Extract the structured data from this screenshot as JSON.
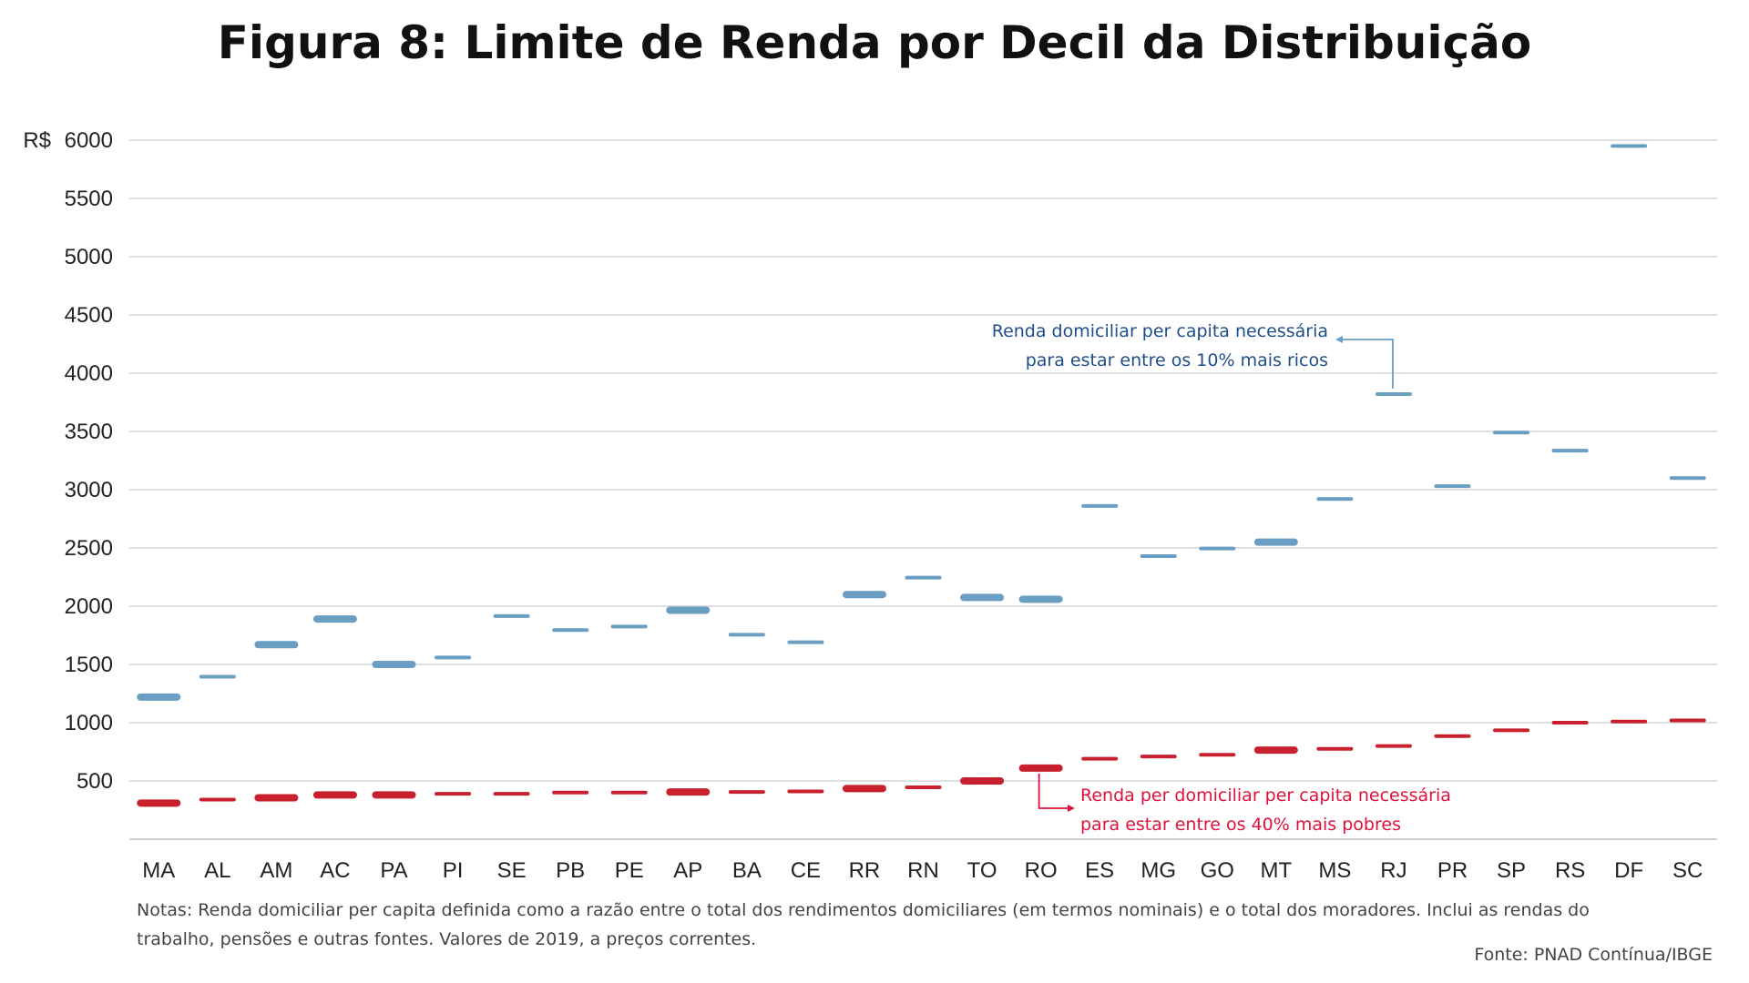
{
  "title": "Figura 8: Limite de Renda por Decil da Distribuição",
  "chart_data": {
    "type": "scatter",
    "y_prefix": "R$",
    "ylim": [
      0,
      6000
    ],
    "y_ticks": [
      500,
      1000,
      1500,
      2000,
      2500,
      3000,
      3500,
      4000,
      4500,
      5000,
      5500,
      6000
    ],
    "grid": true,
    "categories": [
      "MA",
      "AL",
      "AM",
      "AC",
      "PA",
      "PI",
      "SE",
      "PB",
      "PE",
      "AP",
      "BA",
      "CE",
      "RR",
      "RN",
      "TO",
      "RO",
      "ES",
      "MG",
      "GO",
      "MT",
      "MS",
      "RJ",
      "PR",
      "SP",
      "RS",
      "DF",
      "SC"
    ],
    "series": [
      {
        "color": "#6a9ec2",
        "values": [
          1220,
          1395,
          1670,
          1890,
          1500,
          1560,
          1915,
          1795,
          1825,
          1965,
          1755,
          1690,
          2100,
          2245,
          2075,
          2060,
          2860,
          2430,
          2495,
          2550,
          2920,
          3820,
          3030,
          3490,
          3335,
          5950,
          3100
        ],
        "bold": [
          true,
          false,
          true,
          true,
          true,
          false,
          false,
          false,
          false,
          true,
          false,
          false,
          true,
          false,
          true,
          true,
          false,
          false,
          false,
          true,
          false,
          false,
          false,
          false,
          false,
          false,
          false
        ]
      },
      {
        "color": "#c8202d",
        "values": [
          310,
          340,
          355,
          380,
          380,
          390,
          390,
          400,
          400,
          405,
          405,
          410,
          435,
          445,
          500,
          610,
          690,
          710,
          725,
          765,
          775,
          800,
          885,
          935,
          1000,
          1010,
          1020
        ],
        "bold": [
          true,
          false,
          true,
          true,
          true,
          false,
          false,
          false,
          false,
          true,
          false,
          false,
          true,
          false,
          true,
          true,
          false,
          false,
          false,
          true,
          false,
          false,
          false,
          false,
          false,
          false,
          false
        ]
      }
    ],
    "annotations": [
      {
        "series": 0,
        "category": "RJ",
        "lines": [
          "Renda domiciliar per capita necessária",
          "para estar entre os 10% mais ricos"
        ],
        "color": "#1f4e8a"
      },
      {
        "series": 1,
        "category": "RO",
        "lines": [
          "Renda per domiciliar per capita necessária",
          "para estar entre os 40% mais pobres"
        ],
        "color": "#e0123c"
      }
    ]
  },
  "notes": "Notas: Renda domiciliar per capita definida como a razão entre o total dos rendimentos domiciliares (em termos nominais) e o total dos moradores. Inclui as rendas do trabalho, pensões e outras fontes. Valores de 2019, a preços correntes.",
  "source": "Fonte: PNAD Contínua/IBGE"
}
